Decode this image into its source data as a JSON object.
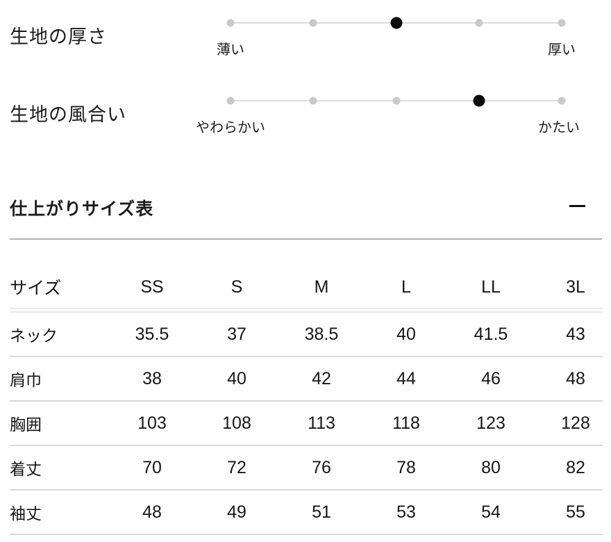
{
  "fabric_scales": [
    {
      "label": "生地の厚さ",
      "left_label": "薄い",
      "right_label": "厚い",
      "levels": 5,
      "active_level": 3
    },
    {
      "label": "生地の風合い",
      "left_label": "やわらかい",
      "right_label": "かたい",
      "levels": 5,
      "active_level": 4
    }
  ],
  "size_section": {
    "title": "仕上がりサイズ表",
    "collapse_icon": "minus-icon",
    "table": {
      "columns": [
        "サイズ",
        "SS",
        "S",
        "M",
        "L",
        "LL",
        "3L"
      ],
      "rows": [
        {
          "label": "ネック",
          "values": [
            "35.5",
            "37",
            "38.5",
            "40",
            "41.5",
            "43"
          ]
        },
        {
          "label": "肩巾",
          "values": [
            "38",
            "40",
            "42",
            "44",
            "46",
            "48"
          ]
        },
        {
          "label": "胸囲",
          "values": [
            "103",
            "108",
            "113",
            "118",
            "123",
            "128"
          ]
        },
        {
          "label": "着丈",
          "values": [
            "70",
            "72",
            "76",
            "78",
            "80",
            "82"
          ]
        },
        {
          "label": "袖丈",
          "values": [
            "48",
            "49",
            "51",
            "53",
            "54",
            "55"
          ]
        }
      ]
    }
  },
  "colors": {
    "active_dot": "#0c0c0c",
    "inactive_dot": "#c9c9c9",
    "scale_line": "#dcdcdc",
    "section_divider": "#b3b3b3",
    "row_divider": "#d9d9d9",
    "header_double_border": "#e9e9e9"
  }
}
